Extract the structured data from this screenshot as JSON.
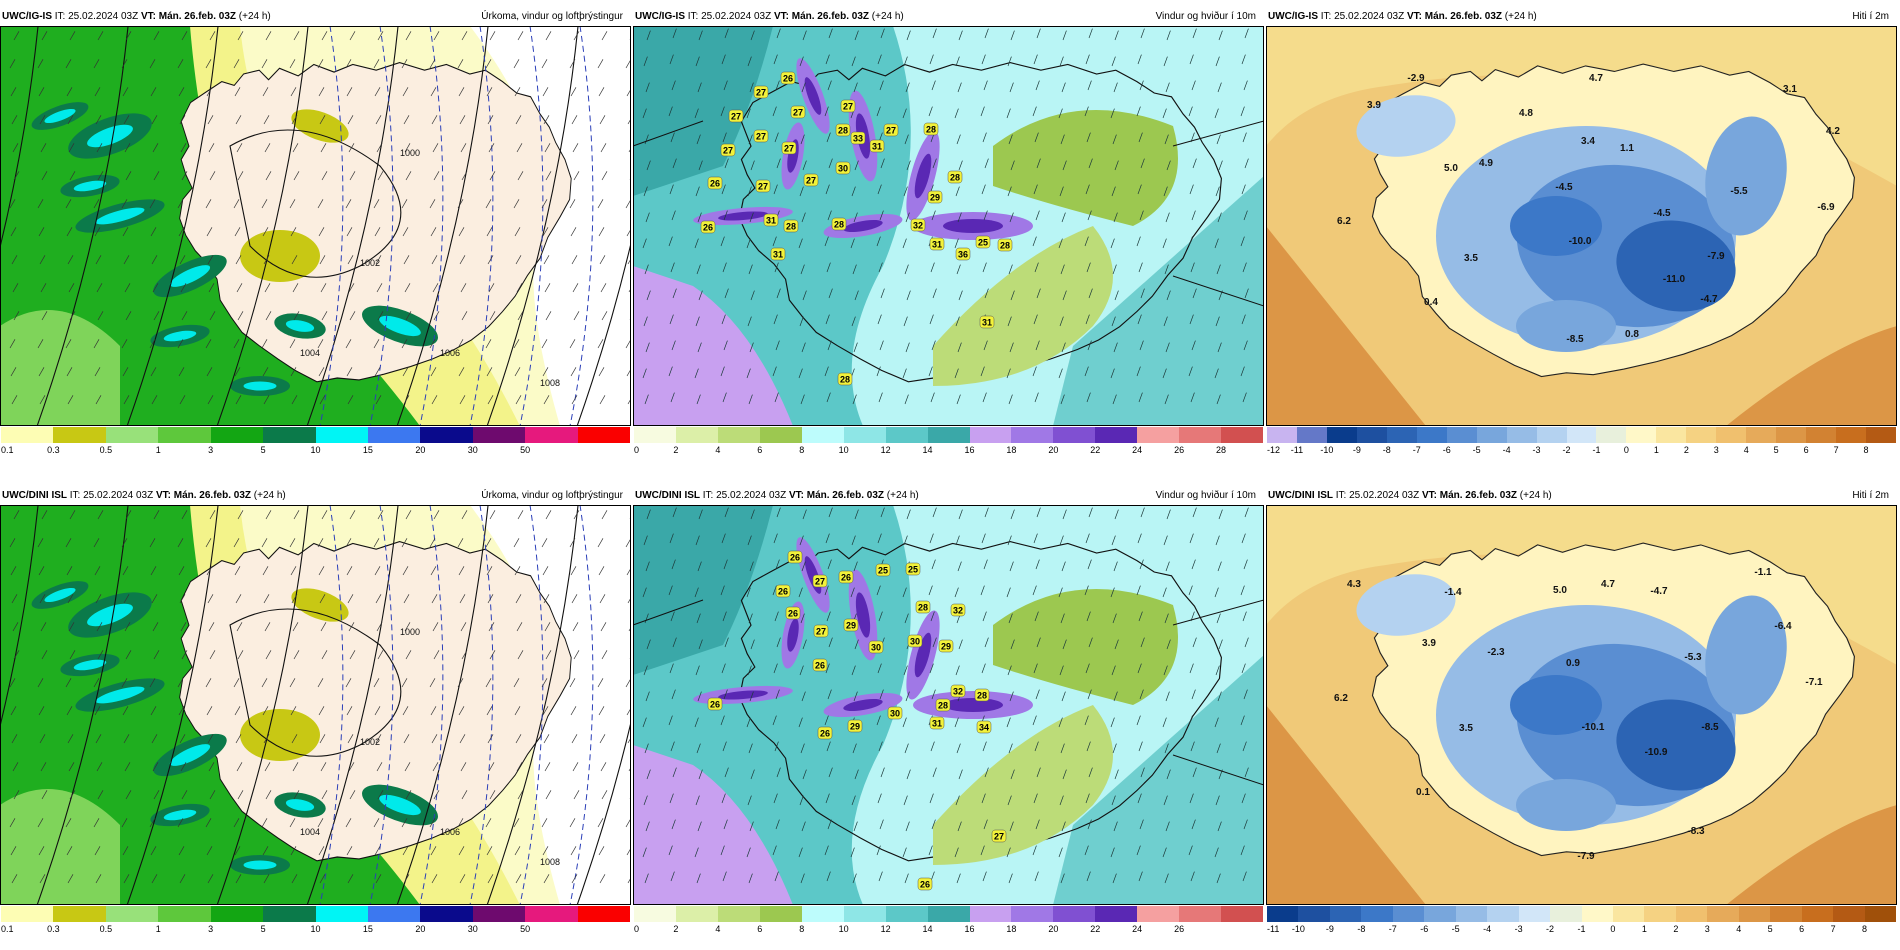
{
  "panels": [
    {
      "model": "UWC/IG-IS",
      "it_label": "IT:",
      "it_value": "25.02.2024 03Z",
      "vt_label": "VT:",
      "vt_value": "Mán. 26.feb. 03Z",
      "lead": "(+24 h)",
      "title": "Úrkoma, vindur og loftþrýstingur",
      "field": "precip",
      "colorbar": {
        "colors": [
          "#fdfdb4",
          "#c8c814",
          "#98e17a",
          "#5ec83c",
          "#13a613",
          "#0b7a4a",
          "#00f5f5",
          "#3c78f0",
          "#0a0a8c",
          "#6e0a6e",
          "#e6197d",
          "#fa0000"
        ],
        "ticks": [
          "0.1",
          "0.3",
          "0.5",
          "1",
          "3",
          "5",
          "10",
          "15",
          "20",
          "30",
          "50"
        ]
      },
      "pressure_labels": [
        "1000",
        "1002",
        "1004",
        "1006",
        "1008"
      ],
      "values": []
    },
    {
      "model": "UWC/IG-IS",
      "it_label": "IT:",
      "it_value": "25.02.2024 03Z",
      "vt_label": "VT:",
      "vt_value": "Mán. 26.feb. 03Z",
      "lead": "(+24 h)",
      "title": "Vindur og hviður í 10m",
      "field": "wind",
      "colorbar": {
        "colors": [
          "#f7fbe0",
          "#dcefa8",
          "#bcdc78",
          "#9cc850",
          "#bdfcfc",
          "#8ee6e6",
          "#5cc8c8",
          "#3aa8a8",
          "#c8a0f0",
          "#a078e6",
          "#8050d2",
          "#5a28b4",
          "#f5a0a0",
          "#e67878",
          "#d25050"
        ],
        "ticks": [
          "0",
          "2",
          "4",
          "6",
          "8",
          "10",
          "12",
          "14",
          "16",
          "18",
          "20",
          "22",
          "24",
          "26",
          "28"
        ]
      },
      "values": [
        "26",
        "27",
        "27",
        "27",
        "27",
        "27",
        "27",
        "26",
        "27",
        "28",
        "27",
        "27",
        "28",
        "31",
        "28",
        "33",
        "30",
        "31",
        "31",
        "32",
        "29",
        "28",
        "31",
        "36",
        "25",
        "28",
        "31",
        "28",
        "26",
        "27",
        "28"
      ]
    },
    {
      "model": "UWC/IG-IS",
      "it_label": "IT:",
      "it_value": "25.02.2024 03Z",
      "vt_label": "VT:",
      "vt_value": "Mán. 26.feb. 03Z",
      "lead": "(+24 h)",
      "title": "Hiti í 2m",
      "field": "temp",
      "colorbar": {
        "colors": [
          "#c8b4f0",
          "#6478c8",
          "#0a3c8c",
          "#1e50a0",
          "#2c64b4",
          "#3c78c8",
          "#5a8ed2",
          "#78a6dc",
          "#96bce6",
          "#b4d2f0",
          "#d2e6f8",
          "#e8f0dc",
          "#fff8c8",
          "#fae6a0",
          "#f5d282",
          "#f0c06e",
          "#e6aa5a",
          "#dc9646",
          "#d28232",
          "#c86e1e",
          "#b45a14"
        ],
        "ticks": [
          "-12",
          "-11",
          "-10",
          "-9",
          "-8",
          "-7",
          "-6",
          "-5",
          "-4",
          "-3",
          "-2",
          "-1",
          "0",
          "1",
          "2",
          "3",
          "4",
          "5",
          "6",
          "7",
          "8"
        ]
      },
      "values": [
        "-2.9",
        "4.7",
        "3.1",
        "3.9",
        "4.8",
        "3.4",
        "1.1",
        "4.9",
        "-4.5",
        "4.2",
        "5.0",
        "-4.5",
        "-5.5",
        "-6.9",
        "6.2",
        "-10.0",
        "3.5",
        "-7.9",
        "-11.0",
        "0.4",
        "-4.7",
        "0.8",
        "-8.5"
      ]
    },
    {
      "model": "UWC/DINI ISL",
      "it_label": "IT:",
      "it_value": "25.02.2024 03Z",
      "vt_label": "VT:",
      "vt_value": "Mán. 26.feb. 03Z",
      "lead": "(+24 h)",
      "title": "Úrkoma, vindur og loftþrýstingur",
      "field": "precip",
      "colorbar": {
        "colors": [
          "#fdfdb4",
          "#c8c814",
          "#98e17a",
          "#5ec83c",
          "#13a613",
          "#0b7a4a",
          "#00f5f5",
          "#3c78f0",
          "#0a0a8c",
          "#6e0a6e",
          "#e6197d",
          "#fa0000"
        ],
        "ticks": [
          "0.1",
          "0.3",
          "0.5",
          "1",
          "3",
          "5",
          "10",
          "15",
          "20",
          "30",
          "50"
        ]
      },
      "pressure_labels": [
        "1000",
        "1002",
        "1004",
        "1006",
        "1008"
      ],
      "values": []
    },
    {
      "model": "UWC/DINI ISL",
      "it_label": "IT:",
      "it_value": "25.02.2024 03Z",
      "vt_label": "VT:",
      "vt_value": "Mán. 26.feb. 03Z",
      "lead": "(+24 h)",
      "title": "Vindur og hviður í 10m",
      "field": "wind",
      "colorbar": {
        "colors": [
          "#f7fbe0",
          "#dcefa8",
          "#bcdc78",
          "#9cc850",
          "#bdfcfc",
          "#8ee6e6",
          "#5cc8c8",
          "#3aa8a8",
          "#c8a0f0",
          "#a078e6",
          "#8050d2",
          "#5a28b4",
          "#f5a0a0",
          "#e67878",
          "#d25050"
        ],
        "ticks": [
          "0",
          "2",
          "4",
          "6",
          "8",
          "10",
          "12",
          "14",
          "16",
          "18",
          "20",
          "22",
          "24",
          "26"
        ]
      },
      "values": [
        "26",
        "27",
        "26",
        "26",
        "25",
        "26",
        "28",
        "32",
        "29",
        "27",
        "30",
        "29",
        "30",
        "26",
        "28",
        "25",
        "32",
        "31",
        "28",
        "34",
        "26",
        "29",
        "30",
        "26",
        "27",
        "26"
      ]
    },
    {
      "model": "UWC/DINI ISL",
      "it_label": "IT:",
      "it_value": "25.02.2024 03Z",
      "vt_label": "VT:",
      "vt_value": "Mán. 26.feb. 03Z",
      "lead": "(+24 h)",
      "title": "Hiti í 2m",
      "field": "temp",
      "colorbar": {
        "colors": [
          "#0a3c8c",
          "#1e50a0",
          "#2c64b4",
          "#3c78c8",
          "#5a8ed2",
          "#78a6dc",
          "#96bce6",
          "#b4d2f0",
          "#d2e6f8",
          "#e8f0dc",
          "#fff8c8",
          "#fae6a0",
          "#f5d282",
          "#f0c06e",
          "#e6aa5a",
          "#dc9646",
          "#d28232",
          "#c86e1e",
          "#b45a14",
          "#a0500a"
        ],
        "ticks": [
          "-11",
          "-10",
          "-9",
          "-8",
          "-7",
          "-6",
          "-5",
          "-4",
          "-3",
          "-2",
          "-1",
          "0",
          "1",
          "2",
          "3",
          "4",
          "5",
          "6",
          "7",
          "8"
        ]
      },
      "values": [
        "-1.1",
        "4.3",
        "-1.4",
        "5.0",
        "4.7",
        "-4.7",
        "-6.4",
        "3.9",
        "-2.3",
        "0.9",
        "-5.3",
        "6.2",
        "-7.1",
        "3.5",
        "-10.1",
        "-8.5",
        "-10.9",
        "0.1",
        "-8.3",
        "-7.9"
      ]
    }
  ]
}
